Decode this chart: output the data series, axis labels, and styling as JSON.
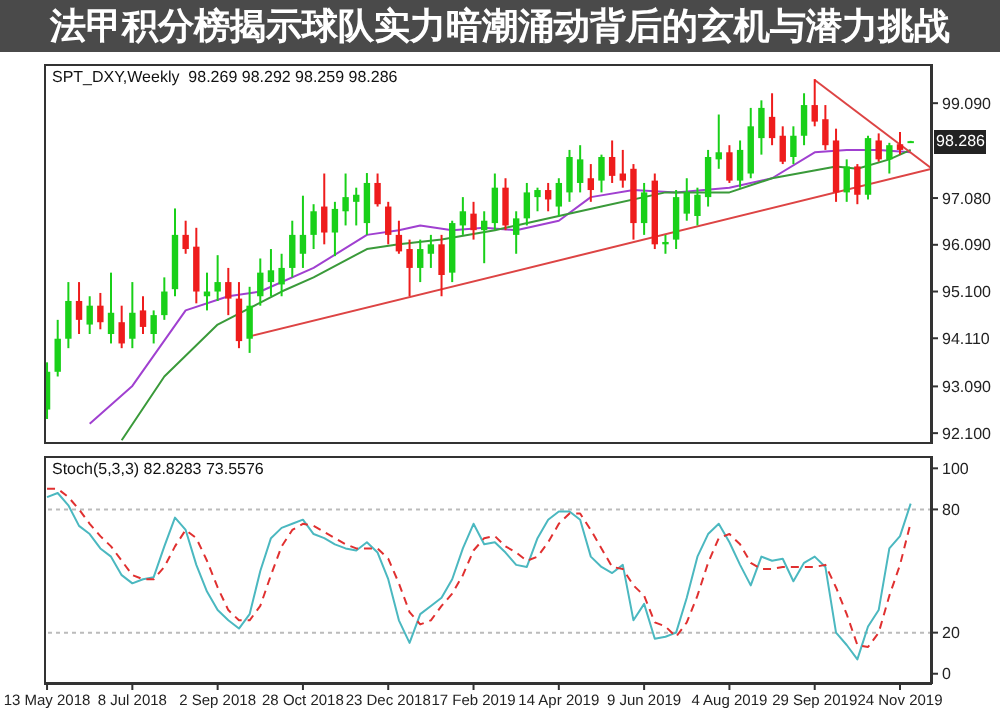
{
  "chart_data": [
    {
      "type": "candlestick",
      "title": "法甲积分榜揭示球队实力暗潮涌动背后的玄机与潜力挑战",
      "subtitle": "SPT_DXY,Weekly  98.269 98.292 98.259 98.286",
      "x": [
        "2018-05-13",
        "2018-05-20",
        "2018-05-27",
        "2018-06-03",
        "2018-06-10",
        "2018-06-17",
        "2018-06-24",
        "2018-07-01",
        "2018-07-08",
        "2018-07-15",
        "2018-07-22",
        "2018-07-29",
        "2018-08-05",
        "2018-08-12",
        "2018-08-19",
        "2018-08-26",
        "2018-09-02",
        "2018-09-09",
        "2018-09-16",
        "2018-09-23",
        "2018-09-30",
        "2018-10-07",
        "2018-10-14",
        "2018-10-21",
        "2018-10-28",
        "2018-11-04",
        "2018-11-11",
        "2018-11-18",
        "2018-11-25",
        "2018-12-02",
        "2018-12-09",
        "2018-12-16",
        "2018-12-23",
        "2018-12-30",
        "2019-01-06",
        "2019-01-13",
        "2019-01-20",
        "2019-01-27",
        "2019-02-03",
        "2019-02-10",
        "2019-02-17",
        "2019-02-24",
        "2019-03-03",
        "2019-03-10",
        "2019-03-17",
        "2019-03-24",
        "2019-03-31",
        "2019-04-07",
        "2019-04-14",
        "2019-04-21",
        "2019-04-28",
        "2019-05-05",
        "2019-05-12",
        "2019-05-19",
        "2019-05-26",
        "2019-06-02",
        "2019-06-09",
        "2019-06-16",
        "2019-06-23",
        "2019-06-30",
        "2019-07-07",
        "2019-07-14",
        "2019-07-21",
        "2019-07-28",
        "2019-08-04",
        "2019-08-11",
        "2019-08-18",
        "2019-08-25",
        "2019-09-01",
        "2019-09-08",
        "2019-09-15",
        "2019-09-22",
        "2019-09-29",
        "2019-10-06",
        "2019-10-13",
        "2019-10-20",
        "2019-10-27",
        "2019-11-03",
        "2019-11-10",
        "2019-11-17",
        "2019-11-24",
        "2019-12-01"
      ],
      "ohlc": [
        [
          92.6,
          93.6,
          92.4,
          93.4
        ],
        [
          93.4,
          94.5,
          93.3,
          94.1
        ],
        [
          94.1,
          95.3,
          93.9,
          94.9
        ],
        [
          94.9,
          95.3,
          94.2,
          94.5
        ],
        [
          94.4,
          95.0,
          94.2,
          94.8
        ],
        [
          94.8,
          95.07,
          94.3,
          94.45
        ],
        [
          94.2,
          95.5,
          94.0,
          94.65
        ],
        [
          94.45,
          94.8,
          93.9,
          94.0
        ],
        [
          94.1,
          95.3,
          93.9,
          94.65
        ],
        [
          94.7,
          95.0,
          94.2,
          94.35
        ],
        [
          94.2,
          94.7,
          94.0,
          94.6
        ],
        [
          94.6,
          95.4,
          94.5,
          95.1
        ],
        [
          95.15,
          96.86,
          95.0,
          96.3
        ],
        [
          96.3,
          96.6,
          95.9,
          96.0
        ],
        [
          96.05,
          96.45,
          94.85,
          95.1
        ],
        [
          95.0,
          95.5,
          94.7,
          95.1
        ],
        [
          95.1,
          95.87,
          94.9,
          95.3
        ],
        [
          95.3,
          95.6,
          94.6,
          94.95
        ],
        [
          94.95,
          95.3,
          93.9,
          94.05
        ],
        [
          94.1,
          95.2,
          93.8,
          94.8
        ],
        [
          95.0,
          95.8,
          94.8,
          95.5
        ],
        [
          95.3,
          96.0,
          95.0,
          95.55
        ],
        [
          95.25,
          95.9,
          95.0,
          95.6
        ],
        [
          95.6,
          96.6,
          95.4,
          96.3
        ],
        [
          95.9,
          97.13,
          95.6,
          96.3
        ],
        [
          96.3,
          96.95,
          96.0,
          96.8
        ],
        [
          96.9,
          97.6,
          96.1,
          96.35
        ],
        [
          96.35,
          97.0,
          95.85,
          96.85
        ],
        [
          96.8,
          97.6,
          96.5,
          97.1
        ],
        [
          97.0,
          97.3,
          96.5,
          97.15
        ],
        [
          96.55,
          97.61,
          96.3,
          97.4
        ],
        [
          97.4,
          97.6,
          96.9,
          96.95
        ],
        [
          96.9,
          97.0,
          96.1,
          96.3
        ],
        [
          96.3,
          96.6,
          95.9,
          95.95
        ],
        [
          96.0,
          96.2,
          95.0,
          95.6
        ],
        [
          95.6,
          96.2,
          95.3,
          96.0
        ],
        [
          95.9,
          96.3,
          95.6,
          96.1
        ],
        [
          96.1,
          96.3,
          95.0,
          95.45
        ],
        [
          95.5,
          96.6,
          95.3,
          96.55
        ],
        [
          96.5,
          97.1,
          96.3,
          96.8
        ],
        [
          96.75,
          97.0,
          96.2,
          96.4
        ],
        [
          96.4,
          96.8,
          95.7,
          96.6
        ],
        [
          96.55,
          97.6,
          96.4,
          97.3
        ],
        [
          97.3,
          97.5,
          96.4,
          96.5
        ],
        [
          96.3,
          96.8,
          95.9,
          96.65
        ],
        [
          96.65,
          97.4,
          96.5,
          97.2
        ],
        [
          97.1,
          97.3,
          96.8,
          97.25
        ],
        [
          97.25,
          97.4,
          96.8,
          97.05
        ],
        [
          96.9,
          97.5,
          96.7,
          97.4
        ],
        [
          97.2,
          98.1,
          97.0,
          97.95
        ],
        [
          97.4,
          98.2,
          97.2,
          97.9
        ],
        [
          97.5,
          97.8,
          97.0,
          97.25
        ],
        [
          97.45,
          98.0,
          97.2,
          97.95
        ],
        [
          97.95,
          98.3,
          97.4,
          97.55
        ],
        [
          97.6,
          98.1,
          97.3,
          97.45
        ],
        [
          97.7,
          97.8,
          96.2,
          96.55
        ],
        [
          96.55,
          97.4,
          96.3,
          97.2
        ],
        [
          97.45,
          97.6,
          96.0,
          96.1
        ],
        [
          96.1,
          96.3,
          95.9,
          96.15
        ],
        [
          96.2,
          97.25,
          96.0,
          97.1
        ],
        [
          96.75,
          97.5,
          96.6,
          97.2
        ],
        [
          96.7,
          97.3,
          96.5,
          97.15
        ],
        [
          97.1,
          98.1,
          96.9,
          97.95
        ],
        [
          97.9,
          98.85,
          97.7,
          98.05
        ],
        [
          98.05,
          98.2,
          97.4,
          97.45
        ],
        [
          97.45,
          98.3,
          97.3,
          98.1
        ],
        [
          97.6,
          98.99,
          97.5,
          98.6
        ],
        [
          98.35,
          99.15,
          98.0,
          98.99
        ],
        [
          98.8,
          99.3,
          98.2,
          98.35
        ],
        [
          98.4,
          98.6,
          97.8,
          97.85
        ],
        [
          97.95,
          98.6,
          97.8,
          98.4
        ],
        [
          98.4,
          99.3,
          98.2,
          99.05
        ],
        [
          99.05,
          99.6,
          98.6,
          98.7
        ],
        [
          98.75,
          99.05,
          98.1,
          98.2
        ],
        [
          98.3,
          98.55,
          97.0,
          97.2
        ],
        [
          97.2,
          97.9,
          97.0,
          97.75
        ],
        [
          97.75,
          97.8,
          96.95,
          97.15
        ],
        [
          97.15,
          98.4,
          97.05,
          98.35
        ],
        [
          98.3,
          98.45,
          97.85,
          97.9
        ],
        [
          97.9,
          98.25,
          97.6,
          98.2
        ],
        [
          98.22,
          98.48,
          98.0,
          98.1
        ],
        [
          98.269,
          98.292,
          98.259,
          98.286
        ]
      ],
      "colors": [
        "#19d019",
        "#19d019",
        "#19d019",
        "#ee1c1c",
        "#19d019",
        "#ee1c1c",
        "#19d019",
        "#ee1c1c",
        "#19d019",
        "#ee1c1c",
        "#19d019",
        "#19d019",
        "#19d019",
        "#ee1c1c",
        "#ee1c1c",
        "#19d019",
        "#19d019",
        "#ee1c1c",
        "#ee1c1c",
        "#19d019",
        "#19d019",
        "#19d019",
        "#19d019",
        "#19d019",
        "#19d019",
        "#19d019",
        "#ee1c1c",
        "#19d019",
        "#19d019",
        "#19d019",
        "#19d019",
        "#ee1c1c",
        "#ee1c1c",
        "#ee1c1c",
        "#ee1c1c",
        "#19d019",
        "#19d019",
        "#ee1c1c",
        "#19d019",
        "#19d019",
        "#ee1c1c",
        "#19d019",
        "#19d019",
        "#ee1c1c",
        "#19d019",
        "#19d019",
        "#19d019",
        "#ee1c1c",
        "#19d019",
        "#19d019",
        "#19d019",
        "#ee1c1c",
        "#19d019",
        "#ee1c1c",
        "#ee1c1c",
        "#ee1c1c",
        "#19d019",
        "#ee1c1c",
        "#19d019",
        "#19d019",
        "#19d019",
        "#19d019",
        "#19d019",
        "#19d019",
        "#ee1c1c",
        "#19d019",
        "#19d019",
        "#19d019",
        "#ee1c1c",
        "#ee1c1c",
        "#19d019",
        "#19d019",
        "#ee1c1c",
        "#ee1c1c",
        "#ee1c1c",
        "#19d019",
        "#ee1c1c",
        "#19d019",
        "#ee1c1c",
        "#19d019",
        "#ee1c1c",
        "#19d019"
      ],
      "series": [
        {
          "type": "line",
          "color": "#a040d0",
          "x": [
            "2018-06-10",
            "2018-07-08",
            "2018-08-12",
            "2018-09-09",
            "2018-09-30",
            "2018-11-04",
            "2018-12-09",
            "2018-12-30",
            "2019-01-13",
            "2019-02-03",
            "2019-02-24",
            "2019-03-17",
            "2019-04-14",
            "2019-05-05",
            "2019-06-02",
            "2019-06-30",
            "2019-08-04",
            "2019-09-01",
            "2019-09-29",
            "2019-10-20",
            "2019-11-10",
            "2019-12-01"
          ],
          "values": [
            92.3,
            93.1,
            94.7,
            95.0,
            95.1,
            95.6,
            96.3,
            96.4,
            96.5,
            96.4,
            96.45,
            96.4,
            96.6,
            97.1,
            97.25,
            97.2,
            97.3,
            97.5,
            98.05,
            98.1,
            98.1,
            98.05
          ]
        },
        {
          "type": "line",
          "color": "#3a9a3a",
          "x": [
            "2018-07-01",
            "2018-07-29",
            "2018-09-02",
            "2018-10-14",
            "2018-11-04",
            "2018-12-09",
            "2018-12-30",
            "2019-01-27",
            "2019-03-03",
            "2019-03-17",
            "2019-05-12",
            "2019-06-23",
            "2019-08-04",
            "2019-09-01",
            "2019-10-13",
            "2019-10-27",
            "2019-11-17",
            "2019-12-01"
          ],
          "values": [
            91.95,
            93.3,
            94.4,
            95.1,
            95.4,
            96.0,
            96.1,
            96.2,
            96.4,
            96.5,
            96.9,
            97.2,
            97.2,
            97.5,
            97.75,
            97.7,
            97.9,
            98.1
          ]
        },
        {
          "type": "line",
          "color": "#dd4444",
          "x": [
            "2018-09-23",
            "2019-12-15"
          ],
          "values": [
            94.15,
            97.7
          ]
        },
        {
          "type": "line",
          "color": "#dd4444",
          "x": [
            "2019-09-29",
            "2019-12-15"
          ],
          "values": [
            99.58,
            97.7
          ]
        }
      ],
      "xlim": [
        "2018-05-11",
        "2019-12-15"
      ],
      "ylim": [
        91.87,
        99.92
      ],
      "yticks": [
        {
          "value": 99.09,
          "label": "99.090"
        },
        {
          "value": 97.08,
          "label": "97.080"
        },
        {
          "value": 96.09,
          "label": "96.090"
        },
        {
          "value": 95.1,
          "label": "95.100"
        },
        {
          "value": 94.11,
          "label": "94.110"
        },
        {
          "value": 93.09,
          "label": "93.090"
        },
        {
          "value": 92.1,
          "label": "92.100"
        }
      ],
      "annotations": [
        {
          "text": "98.286",
          "x": "2019-12-01",
          "y": 98.286
        }
      ],
      "tick_labels": "y",
      "marker": "none"
    },
    {
      "type": "line",
      "title": "Stoch(5,3,3) 82.8283 73.5576",
      "x": [
        "2018-05-13",
        "2018-05-20",
        "2018-05-27",
        "2018-06-03",
        "2018-06-10",
        "2018-06-17",
        "2018-06-24",
        "2018-07-01",
        "2018-07-08",
        "2018-07-15",
        "2018-07-22",
        "2018-07-29",
        "2018-08-05",
        "2018-08-12",
        "2018-08-19",
        "2018-08-26",
        "2018-09-02",
        "2018-09-09",
        "2018-09-16",
        "2018-09-23",
        "2018-09-30",
        "2018-10-07",
        "2018-10-14",
        "2018-10-21",
        "2018-10-28",
        "2018-11-04",
        "2018-11-11",
        "2018-11-18",
        "2018-11-25",
        "2018-12-02",
        "2018-12-09",
        "2018-12-16",
        "2018-12-23",
        "2018-12-30",
        "2019-01-06",
        "2019-01-13",
        "2019-01-20",
        "2019-01-27",
        "2019-02-03",
        "2019-02-10",
        "2019-02-17",
        "2019-02-24",
        "2019-03-03",
        "2019-03-10",
        "2019-03-17",
        "2019-03-24",
        "2019-03-31",
        "2019-04-07",
        "2019-04-14",
        "2019-04-21",
        "2019-04-28",
        "2019-05-05",
        "2019-05-12",
        "2019-05-19",
        "2019-05-26",
        "2019-06-02",
        "2019-06-09",
        "2019-06-16",
        "2019-06-23",
        "2019-06-30",
        "2019-07-07",
        "2019-07-14",
        "2019-07-21",
        "2019-07-28",
        "2019-08-04",
        "2019-08-11",
        "2019-08-18",
        "2019-08-25",
        "2019-09-01",
        "2019-09-08",
        "2019-09-15",
        "2019-09-22",
        "2019-09-29",
        "2019-10-06",
        "2019-10-13",
        "2019-10-20",
        "2019-10-27",
        "2019-11-03",
        "2019-11-10",
        "2019-11-17",
        "2019-11-24",
        "2019-12-01"
      ],
      "series": [
        {
          "color": "#4bb8c0",
          "values": [
            86,
            88,
            82,
            72,
            68,
            61,
            57,
            48,
            44,
            46,
            47,
            62,
            76,
            70,
            53,
            40,
            31,
            26,
            22,
            29,
            50,
            66,
            71,
            73,
            75,
            68,
            66,
            63,
            61,
            60,
            64,
            59,
            46,
            26,
            15,
            29,
            33,
            37,
            46,
            61,
            73,
            63,
            64,
            59,
            53,
            52,
            66,
            75,
            79,
            79,
            75,
            57,
            52,
            49,
            53,
            26,
            34,
            17,
            18,
            20,
            37,
            57,
            68,
            73,
            64,
            53,
            43,
            57,
            55,
            56,
            45,
            54,
            57,
            52,
            20,
            14,
            7,
            23,
            31,
            61,
            67,
            82.8283
          ]
        },
        {
          "color": "#e03030",
          "line_style": "dashed",
          "values": [
            90,
            90,
            86,
            80,
            73,
            67,
            62,
            55,
            48,
            46,
            46,
            52,
            62,
            70,
            66,
            55,
            42,
            31,
            26,
            26,
            33,
            48,
            62,
            70,
            73,
            72,
            69,
            66,
            63,
            61,
            61,
            61,
            56,
            44,
            30,
            24,
            26,
            33,
            39,
            48,
            60,
            66,
            67,
            62,
            59,
            55,
            57,
            64,
            73,
            78,
            78,
            70,
            61,
            52,
            51,
            43,
            38,
            25,
            23,
            18,
            25,
            38,
            54,
            66,
            68,
            63,
            54,
            51,
            51,
            52,
            52,
            52,
            52,
            53,
            42,
            29,
            14,
            13,
            20,
            38,
            53,
            73.5576
          ]
        }
      ],
      "xlim": [
        "2018-05-11",
        "2019-12-15"
      ],
      "xticks": [
        {
          "value": "2018-05-13",
          "label": "13 May 2018"
        },
        {
          "value": "2018-07-08",
          "label": "8 Jul 2018"
        },
        {
          "value": "2018-09-02",
          "label": "2 Sep 2018"
        },
        {
          "value": "2018-10-28",
          "label": "28 Oct 2018"
        },
        {
          "value": "2018-12-23",
          "label": "23 Dec 2018"
        },
        {
          "value": "2019-02-17",
          "label": "17 Feb 2019"
        },
        {
          "value": "2019-04-14",
          "label": "14 Apr 2019"
        },
        {
          "value": "2019-06-09",
          "label": "9 Jun 2019"
        },
        {
          "value": "2019-08-04",
          "label": "4 Aug 2019"
        },
        {
          "value": "2019-09-29",
          "label": "29 Sep 2019"
        },
        {
          "value": "2019-11-24",
          "label": "24 Nov 2019"
        }
      ],
      "ylim": [
        -5,
        106
      ],
      "yticks": [
        0,
        20,
        80,
        100
      ],
      "ref_lines": [
        {
          "axis": "y",
          "value": 20,
          "color": "#bbbbbb",
          "line_style": "dotted"
        },
        {
          "axis": "y",
          "value": 80,
          "color": "#bbbbbb",
          "line_style": "dotted"
        }
      ],
      "marker": "none"
    }
  ]
}
